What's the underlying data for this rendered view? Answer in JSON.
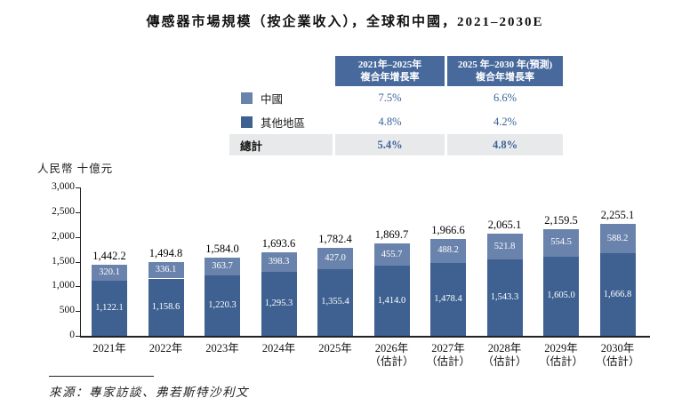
{
  "title": "傳感器市場規模（按企業收入），全球和中國，2021–2030E",
  "colors": {
    "china_light_blue": "#6A83AC",
    "other_dark_blue": "#3E6191",
    "table_header_bg": "#47699C",
    "total_row_bg": "#E8E9EA",
    "percent_text": "#3A639B"
  },
  "cagr_table": {
    "headers": [
      {
        "line1": "2021年–2025年",
        "line2": "複合年增長率"
      },
      {
        "line1": "2025 年–2030 年(預測)",
        "line2": "複合年增長率"
      }
    ],
    "rows": [
      {
        "label": "中國",
        "swatch": "china_light_blue",
        "cagr_2021_2025": "7.5%",
        "cagr_2025_2030": "6.6%"
      },
      {
        "label": "其他地區",
        "swatch": "other_dark_blue",
        "cagr_2021_2025": "4.8%",
        "cagr_2025_2030": "4.2%"
      }
    ],
    "total": {
      "label": "總計",
      "cagr_2021_2025": "5.4%",
      "cagr_2025_2030": "4.8%"
    }
  },
  "chart_data": {
    "type": "bar",
    "stacked": true,
    "title": "傳感器市場規模（按企業收入），全球和中國，2021–2030E",
    "ylabel": "人民幣 十億元",
    "categories": [
      "2021年",
      "2022年",
      "2023年",
      "2024年",
      "2025年",
      "2026年",
      "2027年",
      "2028年",
      "2029年",
      "2030年"
    ],
    "estimate_note": "（估計）",
    "estimate_from_index": 5,
    "series": [
      {
        "name": "其他地區",
        "color_key": "other_dark_blue",
        "values": [
          1122.1,
          1158.6,
          1220.3,
          1295.3,
          1355.4,
          1414.0,
          1478.4,
          1543.3,
          1605.0,
          1666.8
        ]
      },
      {
        "name": "中國",
        "color_key": "china_light_blue",
        "values": [
          320.1,
          336.1,
          363.7,
          398.3,
          427.0,
          455.7,
          488.2,
          521.8,
          554.5,
          588.2
        ]
      }
    ],
    "totals": [
      1442.2,
      1494.8,
      1584.0,
      1693.6,
      1782.4,
      1869.7,
      1966.6,
      2065.1,
      2159.5,
      2255.1
    ],
    "ylim": [
      0,
      3000
    ],
    "ytick_step": 500,
    "yticks": [
      "0",
      "500",
      "1,000",
      "1,500",
      "2,000",
      "2,500",
      "3,000"
    ],
    "grid": false,
    "legend_position": "in-table"
  },
  "source": "來源：專家訪談、弗若斯特沙利文"
}
